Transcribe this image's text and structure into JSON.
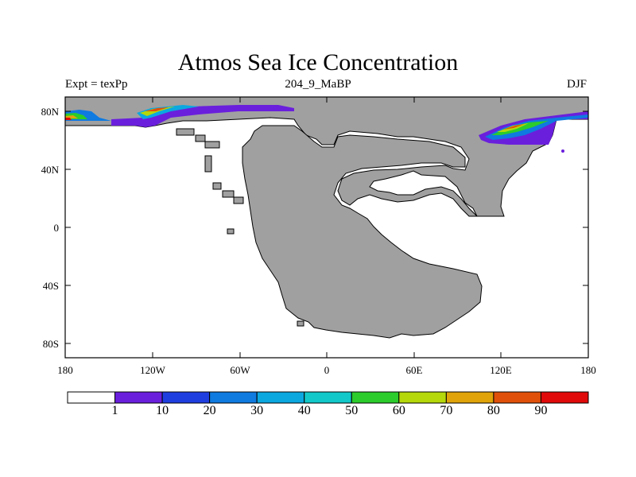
{
  "title": "Atmos Sea Ice Concentration",
  "subtitle_left": "Expt = texPp",
  "subtitle_center": "204_9_MaBP",
  "subtitle_right": "DJF",
  "map": {
    "x_ticks": [
      "180",
      "120W",
      "60W",
      "0",
      "60E",
      "120E",
      "180"
    ],
    "y_ticks": [
      "80N",
      "40N",
      "0",
      "40S",
      "80S"
    ],
    "land_color": "#a0a0a0",
    "ocean_color": "#ffffff"
  },
  "colorbar": {
    "colors": [
      "#ffffff",
      "#6a1fdc",
      "#1f3ee0",
      "#0f7ae0",
      "#0ba8e0",
      "#12c8c8",
      "#2bcc2b",
      "#b4d80a",
      "#e0a40a",
      "#e0500a",
      "#e00a0a"
    ],
    "labels": [
      "1",
      "10",
      "20",
      "30",
      "40",
      "50",
      "60",
      "70",
      "80",
      "90"
    ]
  }
}
